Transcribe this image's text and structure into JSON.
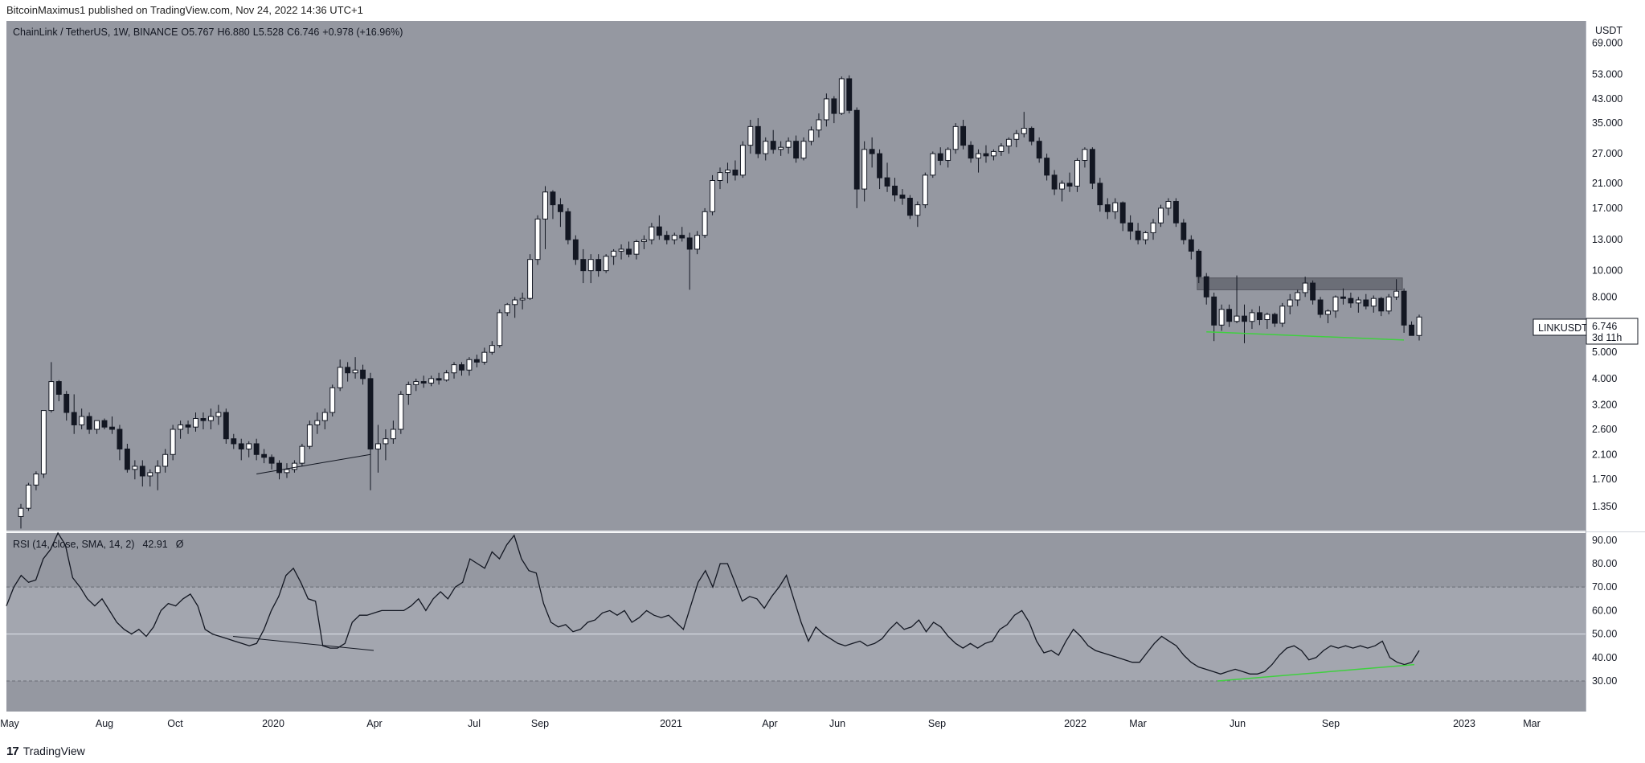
{
  "header": {
    "publisher": "BitcoinMaximus1 published on TradingView.com, Nov 24, 2022 14:36 UTC+1"
  },
  "footer": {
    "brand": "TradingView"
  },
  "colors": {
    "background": "#ffffff",
    "pane": "#9598a1",
    "rsi_band": "#a3a6af",
    "candle_up": "#ffffff",
    "candle_down": "#131722",
    "support_line": "#3fd03f",
    "resistance_zone": "#5a5d66",
    "rsi_line": "#131722"
  },
  "chart_data": [
    {
      "type": "candlestick",
      "title": "ChainLink / TetherUS, 1W, BINANCE",
      "legend": {
        "o_label": "O",
        "o": "5.767",
        "h_label": "H",
        "h": "6.880",
        "l_label": "L",
        "l": "5.528",
        "c_label": "C",
        "c": "6.746",
        "change": "+0.978 (+16.96%)"
      },
      "y_scale": "log",
      "y_unit": "USDT",
      "y_ticks": [
        "69.000",
        "53.000",
        "43.000",
        "35.000",
        "27.000",
        "21.000",
        "17.000",
        "13.000",
        "10.000",
        "8.000",
        "6.000",
        "5.000",
        "4.000",
        "3.200",
        "2.600",
        "2.100",
        "1.700",
        "1.350"
      ],
      "ylim": [
        1.1,
        80
      ],
      "x_ticks": [
        "May",
        "Aug",
        "Oct",
        "2020",
        "Apr",
        "Jul",
        "Sep",
        "2021",
        "Apr",
        "Jun",
        "Sep",
        "2022",
        "Mar",
        "Jun",
        "Sep",
        "2023",
        "Mar"
      ],
      "price_label": {
        "symbol": "LINKUSDT",
        "value": "6.746",
        "countdown": "3d 11h"
      },
      "candles": [
        [
          1.24,
          1.38,
          1.12,
          1.33
        ],
        [
          1.33,
          1.65,
          1.3,
          1.62
        ],
        [
          1.62,
          1.82,
          1.55,
          1.78
        ],
        [
          1.78,
          3.0,
          1.72,
          3.05
        ],
        [
          3.05,
          4.6,
          3.0,
          3.9
        ],
        [
          3.9,
          3.95,
          3.3,
          3.5
        ],
        [
          3.5,
          3.6,
          2.8,
          3.0
        ],
        [
          3.0,
          3.5,
          2.5,
          2.7
        ],
        [
          2.7,
          3.1,
          2.6,
          2.9
        ],
        [
          2.9,
          3.0,
          2.5,
          2.6
        ],
        [
          2.6,
          2.8,
          2.5,
          2.8
        ],
        [
          2.8,
          2.85,
          2.6,
          2.65
        ],
        [
          2.65,
          2.9,
          2.5,
          2.6
        ],
        [
          2.6,
          2.7,
          2.0,
          2.2
        ],
        [
          2.2,
          2.3,
          1.8,
          1.85
        ],
        [
          1.85,
          2.0,
          1.7,
          1.9
        ],
        [
          1.9,
          2.0,
          1.6,
          1.75
        ],
        [
          1.75,
          1.85,
          1.6,
          1.8
        ],
        [
          1.8,
          2.0,
          1.55,
          1.9
        ],
        [
          1.9,
          2.2,
          1.8,
          2.1
        ],
        [
          2.1,
          2.7,
          2.0,
          2.6
        ],
        [
          2.6,
          2.8,
          2.4,
          2.7
        ],
        [
          2.7,
          2.8,
          2.5,
          2.65
        ],
        [
          2.65,
          3.0,
          2.55,
          2.85
        ],
        [
          2.85,
          3.0,
          2.6,
          2.8
        ],
        [
          2.8,
          3.1,
          2.6,
          2.9
        ],
        [
          2.9,
          3.2,
          2.7,
          3.0
        ],
        [
          3.0,
          3.1,
          2.3,
          2.4
        ],
        [
          2.4,
          2.5,
          2.2,
          2.3
        ],
        [
          2.3,
          2.4,
          2.0,
          2.2
        ],
        [
          2.2,
          2.35,
          2.05,
          2.3
        ],
        [
          2.3,
          2.4,
          2.0,
          2.1
        ],
        [
          2.1,
          2.2,
          1.95,
          2.05
        ],
        [
          2.05,
          2.1,
          1.85,
          1.95
        ],
        [
          1.95,
          2.0,
          1.7,
          1.8
        ],
        [
          1.8,
          1.95,
          1.72,
          1.85
        ],
        [
          1.85,
          2.0,
          1.8,
          1.95
        ],
        [
          1.95,
          2.3,
          1.9,
          2.25
        ],
        [
          2.25,
          2.8,
          2.2,
          2.7
        ],
        [
          2.7,
          3.0,
          2.5,
          2.8
        ],
        [
          2.8,
          3.1,
          2.6,
          3.0
        ],
        [
          3.0,
          3.8,
          2.9,
          3.7
        ],
        [
          3.7,
          4.7,
          3.6,
          4.4
        ],
        [
          4.4,
          4.6,
          3.9,
          4.2
        ],
        [
          4.2,
          4.8,
          4.0,
          4.3
        ],
        [
          4.3,
          4.5,
          3.8,
          4.0
        ],
        [
          4.0,
          4.2,
          1.55,
          2.2
        ],
        [
          2.2,
          2.7,
          1.8,
          2.3
        ],
        [
          2.3,
          2.6,
          2.0,
          2.4
        ],
        [
          2.4,
          2.8,
          2.3,
          2.6
        ],
        [
          2.6,
          3.6,
          2.5,
          3.5
        ],
        [
          3.5,
          3.9,
          3.2,
          3.8
        ],
        [
          3.8,
          4.0,
          3.6,
          3.9
        ],
        [
          3.9,
          4.1,
          3.7,
          3.85
        ],
        [
          3.85,
          4.1,
          3.75,
          4.0
        ],
        [
          4.0,
          4.2,
          3.8,
          3.95
        ],
        [
          3.95,
          4.3,
          3.9,
          4.2
        ],
        [
          4.2,
          4.6,
          4.0,
          4.5
        ],
        [
          4.5,
          4.6,
          4.1,
          4.3
        ],
        [
          4.3,
          4.8,
          4.1,
          4.7
        ],
        [
          4.7,
          4.9,
          4.4,
          4.6
        ],
        [
          4.6,
          5.2,
          4.5,
          5.0
        ],
        [
          5.0,
          5.5,
          4.9,
          5.3
        ],
        [
          5.3,
          7.2,
          5.2,
          7.0
        ],
        [
          7.0,
          7.6,
          6.8,
          7.5
        ],
        [
          7.5,
          8.0,
          6.7,
          7.8
        ],
        [
          7.8,
          8.3,
          7.2,
          7.9
        ],
        [
          7.9,
          11.5,
          7.8,
          11.0
        ],
        [
          11.0,
          16.0,
          10.5,
          15.5
        ],
        [
          15.5,
          20.5,
          12.0,
          19.5
        ],
        [
          19.5,
          19.8,
          15.5,
          17.5
        ],
        [
          17.5,
          18.5,
          14.5,
          16.5
        ],
        [
          16.5,
          17.0,
          12.5,
          13.0
        ],
        [
          13.0,
          13.5,
          10.5,
          11.0
        ],
        [
          11.0,
          12.0,
          9.0,
          10.0
        ],
        [
          10.0,
          11.5,
          9.0,
          11.0
        ],
        [
          11.0,
          11.5,
          9.5,
          10.0
        ],
        [
          10.0,
          11.5,
          9.8,
          11.3
        ],
        [
          11.3,
          12.0,
          10.5,
          11.8
        ],
        [
          11.8,
          12.5,
          11.0,
          12.0
        ],
        [
          12.0,
          12.8,
          11.2,
          11.5
        ],
        [
          11.5,
          13.0,
          11.0,
          12.8
        ],
        [
          12.8,
          13.5,
          12.0,
          13.0
        ],
        [
          13.0,
          15.0,
          12.5,
          14.5
        ],
        [
          14.5,
          16.0,
          13.0,
          13.5
        ],
        [
          13.5,
          14.0,
          12.5,
          13.0
        ],
        [
          13.0,
          13.8,
          12.5,
          13.5
        ],
        [
          13.5,
          14.5,
          12.8,
          13.2
        ],
        [
          13.2,
          13.8,
          8.5,
          12.0
        ],
        [
          12.0,
          14.0,
          11.5,
          13.5
        ],
        [
          13.5,
          17.0,
          13.2,
          16.5
        ],
        [
          16.5,
          22.5,
          16.0,
          21.5
        ],
        [
          21.5,
          24.0,
          20.0,
          23.0
        ],
        [
          23.0,
          25.0,
          21.0,
          23.5
        ],
        [
          23.5,
          25.5,
          21.5,
          22.5
        ],
        [
          22.5,
          30.0,
          22.0,
          29.0
        ],
        [
          29.0,
          36.0,
          27.0,
          34.0
        ],
        [
          34.0,
          36.5,
          26.0,
          27.0
        ],
        [
          27.0,
          31.0,
          25.5,
          30.0
        ],
        [
          30.0,
          33.0,
          27.0,
          28.0
        ],
        [
          28.0,
          30.0,
          26.5,
          28.5
        ],
        [
          28.5,
          31.0,
          27.0,
          30.0
        ],
        [
          30.0,
          31.5,
          25.0,
          26.0
        ],
        [
          26.0,
          31.0,
          25.5,
          30.0
        ],
        [
          30.0,
          34.0,
          29.0,
          33.0
        ],
        [
          33.0,
          38.0,
          31.0,
          36.0
        ],
        [
          36.0,
          45.0,
          34.0,
          43.0
        ],
        [
          43.0,
          44.0,
          35.0,
          38.0
        ],
        [
          38.0,
          52.0,
          37.5,
          51.0
        ],
        [
          51.0,
          52.5,
          38.0,
          39.0
        ],
        [
          39.0,
          40.0,
          17.0,
          20.0
        ],
        [
          20.0,
          30.0,
          18.0,
          28.0
        ],
        [
          28.0,
          31.0,
          24.0,
          27.0
        ],
        [
          27.0,
          28.0,
          20.0,
          22.0
        ],
        [
          22.0,
          25.0,
          19.5,
          20.5
        ],
        [
          20.5,
          22.0,
          18.0,
          19.0
        ],
        [
          19.0,
          20.0,
          17.5,
          18.5
        ],
        [
          18.5,
          19.0,
          15.5,
          16.0
        ],
        [
          16.0,
          18.0,
          14.5,
          17.5
        ],
        [
          17.5,
          23.0,
          17.0,
          22.5
        ],
        [
          22.5,
          27.5,
          22.0,
          27.0
        ],
        [
          27.0,
          28.5,
          24.5,
          25.5
        ],
        [
          25.5,
          28.5,
          24.0,
          28.0
        ],
        [
          28.0,
          35.0,
          27.0,
          34.0
        ],
        [
          34.0,
          36.0,
          28.0,
          29.0
        ],
        [
          29.0,
          30.0,
          25.0,
          26.0
        ],
        [
          26.0,
          28.0,
          23.0,
          27.0
        ],
        [
          27.0,
          29.0,
          25.0,
          26.5
        ],
        [
          26.5,
          28.0,
          25.5,
          27.5
        ],
        [
          27.5,
          29.5,
          26.5,
          28.8
        ],
        [
          28.8,
          31.0,
          27.0,
          30.5
        ],
        [
          30.5,
          33.0,
          28.5,
          32.0
        ],
        [
          32.0,
          38.5,
          31.0,
          33.5
        ],
        [
          33.5,
          34.0,
          29.0,
          30.0
        ],
        [
          30.0,
          31.0,
          25.0,
          26.0
        ],
        [
          26.0,
          27.0,
          21.5,
          22.5
        ],
        [
          22.5,
          23.5,
          19.0,
          20.0
        ],
        [
          20.0,
          21.5,
          18.0,
          21.0
        ],
        [
          21.0,
          23.0,
          19.5,
          20.5
        ],
        [
          20.5,
          26.0,
          19.5,
          25.5
        ],
        [
          25.5,
          28.5,
          24.0,
          28.0
        ],
        [
          28.0,
          28.5,
          20.0,
          21.0
        ],
        [
          21.0,
          22.0,
          16.5,
          17.5
        ],
        [
          17.5,
          18.5,
          15.5,
          16.5
        ],
        [
          16.5,
          18.5,
          15.5,
          17.8
        ],
        [
          17.8,
          18.0,
          14.0,
          15.0
        ],
        [
          15.0,
          16.0,
          13.0,
          14.0
        ],
        [
          14.0,
          15.0,
          12.5,
          13.0
        ],
        [
          13.0,
          14.0,
          12.5,
          13.8
        ],
        [
          13.8,
          15.5,
          13.0,
          15.0
        ],
        [
          15.0,
          17.5,
          14.5,
          17.0
        ],
        [
          17.0,
          18.5,
          16.0,
          18.0
        ],
        [
          18.0,
          18.5,
          14.5,
          15.0
        ],
        [
          15.0,
          15.5,
          12.5,
          13.0
        ],
        [
          13.0,
          13.5,
          11.0,
          11.8
        ],
        [
          11.8,
          12.0,
          9.0,
          9.5
        ],
        [
          9.5,
          9.8,
          7.5,
          8.0
        ],
        [
          8.0,
          8.3,
          5.5,
          6.3
        ],
        [
          6.3,
          7.5,
          6.0,
          7.2
        ],
        [
          7.2,
          7.5,
          6.2,
          6.5
        ],
        [
          6.5,
          9.6,
          6.4,
          6.8
        ],
        [
          6.8,
          7.5,
          5.4,
          6.5
        ],
        [
          6.5,
          7.2,
          6.1,
          7.0
        ],
        [
          7.0,
          7.4,
          6.3,
          6.6
        ],
        [
          6.6,
          7.0,
          6.1,
          6.9
        ],
        [
          6.9,
          7.0,
          6.2,
          6.4
        ],
        [
          6.4,
          7.6,
          6.2,
          7.4
        ],
        [
          7.4,
          8.2,
          6.9,
          7.8
        ],
        [
          7.8,
          8.5,
          7.4,
          8.3
        ],
        [
          8.3,
          9.5,
          8.0,
          9.0
        ],
        [
          9.0,
          9.2,
          7.5,
          7.8
        ],
        [
          7.8,
          8.0,
          6.7,
          6.9
        ],
        [
          6.9,
          7.2,
          6.4,
          7.1
        ],
        [
          7.1,
          8.1,
          6.7,
          8.0
        ],
        [
          8.0,
          8.6,
          7.5,
          7.9
        ],
        [
          7.9,
          8.3,
          7.3,
          7.6
        ],
        [
          7.6,
          8.0,
          7.0,
          7.8
        ],
        [
          7.8,
          8.2,
          7.2,
          7.4
        ],
        [
          7.4,
          8.1,
          7.0,
          7.9
        ],
        [
          7.9,
          8.0,
          6.8,
          7.1
        ],
        [
          7.1,
          8.2,
          6.9,
          8.0
        ],
        [
          8.0,
          9.3,
          7.8,
          8.4
        ],
        [
          8.4,
          8.6,
          5.9,
          6.3
        ],
        [
          6.3,
          6.5,
          5.8,
          5.77
        ],
        [
          5.767,
          6.88,
          5.528,
          6.746
        ]
      ],
      "resistance_zone": [
        8.5,
        9.4
      ],
      "annotations": [
        "support trendline",
        "resistance zone",
        "2019-2020 support trendline"
      ]
    },
    {
      "type": "line",
      "title": "RSI (14, close, SMA, 14, 2)",
      "last_value": "42.91",
      "extra": "Ø",
      "y_ticks": [
        "90.00",
        "80.00",
        "70.00",
        "60.00",
        "50.00",
        "40.00",
        "30.00"
      ],
      "ylim": [
        17,
        93
      ],
      "band": [
        30,
        70
      ],
      "midline": 50,
      "values": [
        62,
        70,
        75,
        72,
        73,
        82,
        86,
        93,
        88,
        74,
        70,
        65,
        62,
        65,
        60,
        55,
        52,
        50,
        52,
        49,
        53,
        60,
        63,
        62,
        65,
        67,
        62,
        52,
        50,
        49,
        48,
        47,
        46,
        45,
        46,
        52,
        60,
        66,
        75,
        78,
        72,
        65,
        64,
        45,
        44,
        44,
        46,
        55,
        58,
        58,
        59,
        60,
        60,
        60,
        60,
        62,
        65,
        60,
        65,
        68,
        65,
        70,
        72,
        82,
        80,
        78,
        85,
        82,
        88,
        92,
        82,
        77,
        76,
        63,
        55,
        53,
        54,
        51,
        52,
        55,
        56,
        59,
        60,
        58,
        60,
        55,
        57,
        60,
        58,
        57,
        58,
        55,
        52,
        62,
        72,
        77,
        70,
        80,
        80,
        72,
        64,
        66,
        65,
        61,
        66,
        70,
        75,
        65,
        55,
        47,
        53,
        50,
        48,
        46,
        45,
        46,
        47,
        45,
        46,
        48,
        52,
        55,
        52,
        53,
        56,
        51,
        55,
        53,
        49,
        46,
        44,
        46,
        44,
        46,
        47,
        52,
        54,
        58,
        60,
        55,
        47,
        42,
        43,
        41,
        47,
        52,
        49,
        45,
        43,
        42,
        41,
        40,
        39,
        38,
        38,
        42,
        46,
        49,
        47,
        45,
        41,
        38,
        36,
        35,
        34,
        33,
        34,
        35,
        34,
        33,
        33,
        34,
        37,
        41,
        44,
        45,
        43,
        39,
        40,
        43,
        45,
        44,
        45,
        44,
        45,
        44,
        45,
        47,
        40,
        38,
        37,
        38,
        43
      ]
    }
  ]
}
